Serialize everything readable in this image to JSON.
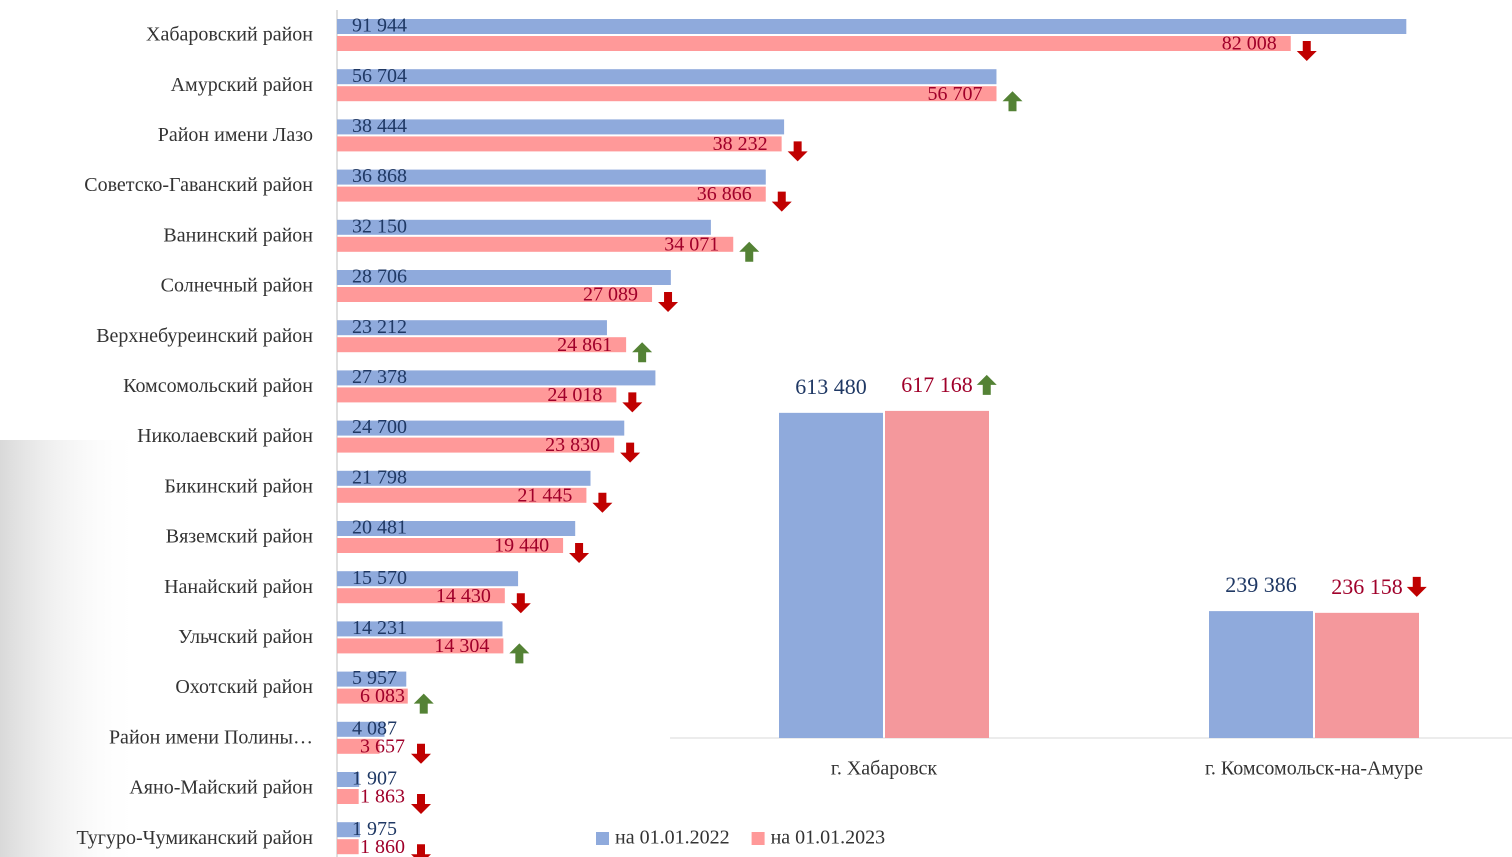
{
  "chart_data": [
    {
      "type": "hbar",
      "categories": [
        "Хабаровский район",
        "Амурский район",
        "Район имени Лазо",
        "Советско-Гаванский район",
        "Ванинский район",
        "Солнечный район",
        "Верхнебуреинский район",
        "Комсомольский район",
        "Николаевский район",
        "Бикинский район",
        "Вяземский район",
        "Нанайский район",
        "Ульчский район",
        "Охотский район",
        "Район имени Полины…",
        "Аяно-Майский район",
        "Тугуро-Чумиканский район"
      ],
      "series": [
        {
          "name": "на 01.01.2022",
          "color": "#8faadc",
          "values": [
            91944,
            56704,
            38444,
            36868,
            32150,
            28706,
            23212,
            27378,
            24700,
            21798,
            20481,
            15570,
            14231,
            5957,
            4087,
            1907,
            1975
          ],
          "value_labels": [
            "91 944",
            "56 704",
            "38 444",
            "36 868",
            "32 150",
            "28 706",
            "23 212",
            "27 378",
            "24 700",
            "21 798",
            "20 481",
            "15 570",
            "14 231",
            "5 957",
            "4 087",
            "1 907",
            "1 975"
          ]
        },
        {
          "name": "на 01.01.2023",
          "color": "#ff9999",
          "values": [
            82008,
            56707,
            38232,
            36866,
            34071,
            27089,
            24861,
            24018,
            23830,
            21445,
            19440,
            14430,
            14304,
            6083,
            3657,
            1863,
            1860
          ],
          "value_labels": [
            "82 008",
            "56 707",
            "38 232",
            "36 866",
            "34 071",
            "27 089",
            "24 861",
            "24 018",
            "23 830",
            "21 445",
            "19 440",
            "14 430",
            "14 304",
            "6 083",
            "3 657",
            "1 863",
            "1 860"
          ]
        }
      ],
      "xlim": [
        0,
        100000
      ]
    },
    {
      "type": "bar",
      "categories": [
        "г. Хабаровск",
        "г. Комсомольск-на-Амуре"
      ],
      "series": [
        {
          "color": "#8faadc",
          "values": [
            613480,
            239386
          ],
          "value_labels": [
            "613 480",
            "239 386"
          ]
        },
        {
          "color": "#f4989c",
          "values": [
            617168,
            236158
          ],
          "value_labels": [
            "617 168",
            "236 158"
          ]
        }
      ],
      "ylim": [
        0,
        700000
      ]
    }
  ]
}
